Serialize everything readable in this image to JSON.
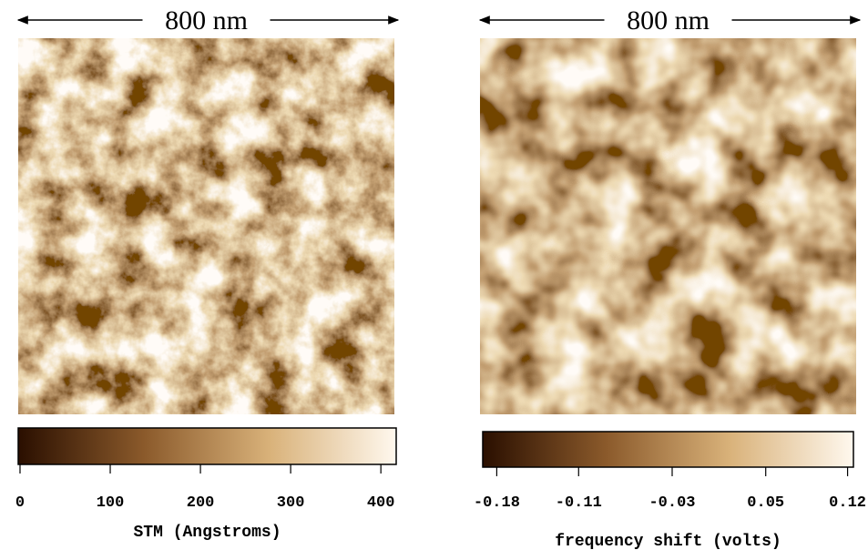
{
  "chart_data": [
    {
      "type": "image",
      "scale_label": "800 nm",
      "colorbar_label": "STM (Angstroms)",
      "xlim": [
        -2,
        417
      ],
      "xticks": [
        0,
        100,
        200,
        300,
        400
      ],
      "colormap": [
        "#2a0f00",
        "#8b5a2b",
        "#d9b27a",
        "#fff8ee"
      ]
    },
    {
      "type": "image",
      "scale_label": "800 nm",
      "colorbar_label": "frequency shift (volts)",
      "xlim": [
        -0.192,
        0.125
      ],
      "xticks": [
        -0.18,
        -0.11,
        -0.03,
        0.05,
        0.12
      ],
      "colormap": [
        "#2a0f00",
        "#8b5a2b",
        "#d9b27a",
        "#fff8ee"
      ]
    }
  ]
}
